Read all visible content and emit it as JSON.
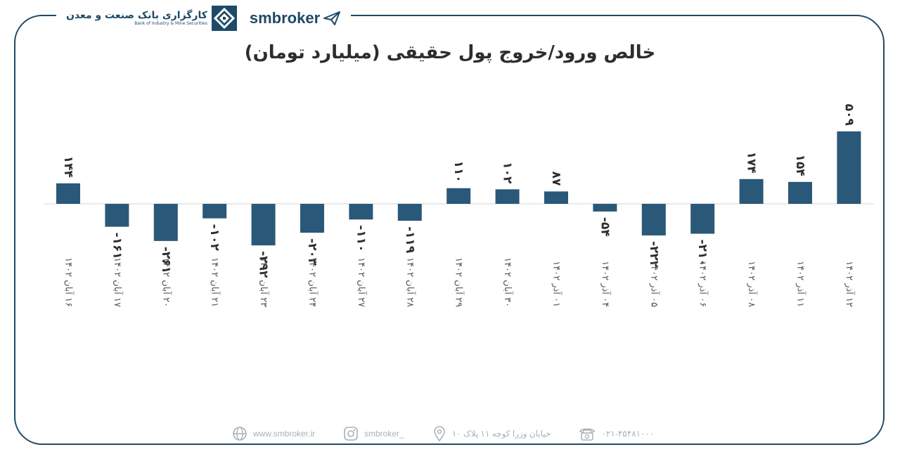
{
  "brand": {
    "bank_name_fa": "کارگزاری بانک صنعت و معدن",
    "bank_name_en": "Bank of Industry & Mine Securities",
    "sm_word": "smbroker"
  },
  "colors": {
    "bar": "#2a5878",
    "frame": "#1f4a66",
    "footer": "#a9b1b8"
  },
  "chart_data": {
    "type": "bar",
    "title": "خالص ورود/خروج پول حقیقی (میلیارد تومان)",
    "categories": [
      "۱۶ آبان ۱۴۰۲",
      "۱۷ آبان ۱۴۰۲",
      "۲۰ آبان ۱۴۰۲",
      "۲۱ آبان ۱۴۰۲",
      "۲۳ آبان ۱۴۰۲",
      "۲۴ آبان ۱۴۰۲",
      "۲۷ آبان ۱۴۰۲",
      "۲۸ آبان ۱۴۰۲",
      "۲۹ آبان ۱۴۰۲",
      "۳۰ آبان ۱۴۰۲",
      "۰۱ آذر ۱۴۰۲",
      "۰۴ آذر ۱۴۰۲",
      "۰۵ آذر ۱۴۰۲",
      "۰۶ آذر ۱۴۰۲",
      "۰۸ آذر ۱۴۰۲",
      "۱۱ آذر ۱۴۰۲",
      "۱۲ آذر ۱۴۰۲"
    ],
    "values": [
      144,
      -161,
      -261,
      -102,
      -292,
      -203,
      -110,
      -119,
      110,
      102,
      87,
      -54,
      -222,
      -210,
      174,
      154,
      509
    ],
    "value_labels": [
      "۱۴۴",
      "-۱۶۱",
      "-۲۶۱",
      "-۱۰۲",
      "-۲۹۲",
      "-۲۰۳",
      "-۱۱۰",
      "-۱۱۹",
      "۱۱۰",
      "۱۰۲",
      "۸۷",
      "-۵۴",
      "-۲۲۲",
      "-۲۱۰",
      "۱۷۴",
      "۱۵۴",
      "۵۰۹"
    ],
    "ylim": [
      -300,
      520
    ]
  },
  "footer": {
    "website": "www.smbroker.ir",
    "instagram": "smbroker_",
    "address": "خیابان وزرا کوچه ۱۱ پلاک ۱۰",
    "phone": "۰۲۱-۴۵۴۸۱۰۰۰"
  }
}
